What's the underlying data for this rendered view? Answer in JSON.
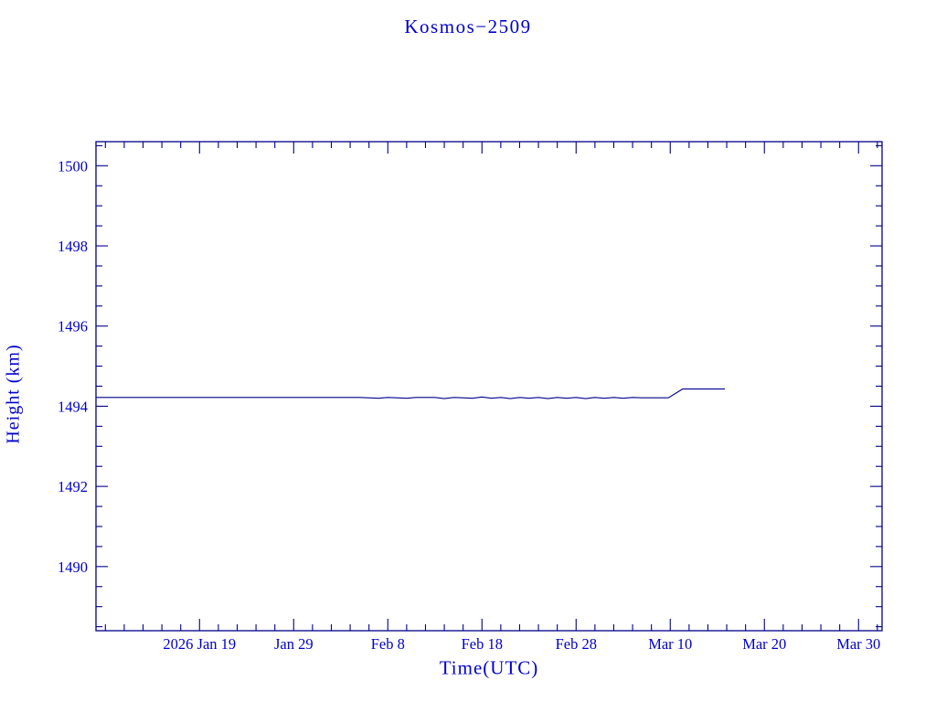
{
  "colors": {
    "background": "#ffffff",
    "text": "#0000cd",
    "axis": "#00008b",
    "line": "#00008b"
  },
  "chart_data": {
    "type": "line",
    "title": "Kosmos−2509",
    "xlabel": "Time(UTC)",
    "ylabel": "Height (km)",
    "x_unit": "days since 2026-01-01",
    "xlim": [
      8,
      91.5
    ],
    "ylim": [
      1488.4,
      1500.6
    ],
    "grid": false,
    "legend": "none",
    "x_ticks": [
      {
        "value": 19,
        "label": "2026 Jan 19"
      },
      {
        "value": 29,
        "label": "Jan 29"
      },
      {
        "value": 39,
        "label": "Feb  8"
      },
      {
        "value": 49,
        "label": "Feb 18"
      },
      {
        "value": 59,
        "label": "Feb 28"
      },
      {
        "value": 69,
        "label": "Mar 10"
      },
      {
        "value": 79,
        "label": "Mar 20"
      },
      {
        "value": 89,
        "label": "Mar 30"
      }
    ],
    "x_minor_step": 2,
    "y_ticks": [
      {
        "value": 1490,
        "label": "1490"
      },
      {
        "value": 1492,
        "label": "1492"
      },
      {
        "value": 1494,
        "label": "1494"
      },
      {
        "value": 1496,
        "label": "1496"
      },
      {
        "value": 1498,
        "label": "1498"
      },
      {
        "value": 1500,
        "label": "1500"
      }
    ],
    "y_minor_step": 0.5,
    "series": [
      {
        "name": "height",
        "points": [
          [
            8,
            1494.22
          ],
          [
            36,
            1494.22
          ],
          [
            38,
            1494.2
          ],
          [
            39,
            1494.22
          ],
          [
            41,
            1494.2
          ],
          [
            42,
            1494.22
          ],
          [
            44,
            1494.22
          ],
          [
            45,
            1494.19
          ],
          [
            46,
            1494.22
          ],
          [
            48,
            1494.2
          ],
          [
            49,
            1494.23
          ],
          [
            50,
            1494.2
          ],
          [
            51,
            1494.22
          ],
          [
            52,
            1494.19
          ],
          [
            53,
            1494.22
          ],
          [
            54,
            1494.2
          ],
          [
            55,
            1494.22
          ],
          [
            56,
            1494.19
          ],
          [
            57,
            1494.22
          ],
          [
            58,
            1494.2
          ],
          [
            59,
            1494.22
          ],
          [
            60,
            1494.19
          ],
          [
            61,
            1494.22
          ],
          [
            62,
            1494.2
          ],
          [
            63,
            1494.22
          ],
          [
            64,
            1494.2
          ],
          [
            65,
            1494.22
          ],
          [
            66,
            1494.21
          ],
          [
            68.8,
            1494.21
          ],
          [
            70.3,
            1494.43
          ],
          [
            74.8,
            1494.43
          ]
        ]
      }
    ]
  }
}
